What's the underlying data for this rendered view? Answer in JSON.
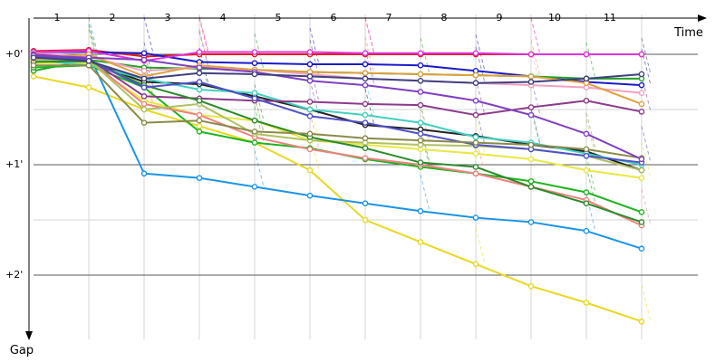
{
  "chart_data": {
    "type": "line",
    "title": "",
    "xlabel": "Time",
    "ylabel": "Gap",
    "x_ticks": [
      "1",
      "2",
      "3",
      "4",
      "5",
      "6",
      "7",
      "8",
      "9",
      "10",
      "11"
    ],
    "y_ticks": [
      "+0'",
      "+1'",
      "+2'"
    ],
    "xlim": [
      0,
      12
    ],
    "ylim_minutes": [
      -0.25,
      2.55
    ],
    "y_inverted": true,
    "grid": true,
    "legend": "none",
    "series": [
      {
        "color": "#e81b1b",
        "values": [
          -0.03,
          -0.04,
          0.02,
          0.0,
          0.0,
          0.0,
          0.0,
          0.0,
          0.0,
          0.0,
          0.0,
          0.0
        ]
      },
      {
        "color": "#1a1acb",
        "values": [
          -0.02,
          -0.02,
          -0.01,
          0.07,
          0.08,
          0.09,
          0.09,
          0.1,
          0.15,
          0.2,
          0.25,
          0.28
        ]
      },
      {
        "color": "#22a322",
        "values": [
          0.15,
          0.05,
          0.12,
          0.13,
          0.14,
          0.16,
          0.17,
          0.18,
          0.19,
          0.2,
          0.22,
          0.22
        ]
      },
      {
        "color": "#dd33dd",
        "values": [
          -0.02,
          -0.03,
          0.06,
          -0.02,
          -0.02,
          -0.02,
          -0.01,
          -0.01,
          -0.01,
          0.0,
          0.0,
          0.0
        ]
      },
      {
        "color": "#e8d820",
        "values": [
          0.2,
          0.3,
          0.5,
          0.65,
          0.8,
          1.05,
          1.5,
          1.7,
          1.9,
          2.1,
          2.25,
          2.42
        ]
      },
      {
        "color": "#1a94e6",
        "values": [
          0.08,
          0.0,
          1.08,
          1.12,
          1.2,
          1.28,
          1.35,
          1.42,
          1.48,
          1.52,
          1.6,
          1.76
        ]
      },
      {
        "color": "#222222",
        "values": [
          0.05,
          0.07,
          0.25,
          0.27,
          0.38,
          0.5,
          0.64,
          0.68,
          0.74,
          0.82,
          0.88,
          1.05
        ]
      },
      {
        "color": "#e8e840",
        "values": [
          0.08,
          0.08,
          0.42,
          0.55,
          0.6,
          0.78,
          0.82,
          0.86,
          0.9,
          0.95,
          1.05,
          1.12
        ]
      },
      {
        "color": "#1eb41e",
        "values": [
          0.12,
          0.1,
          0.3,
          0.7,
          0.8,
          0.85,
          0.95,
          1.02,
          1.08,
          1.15,
          1.25,
          1.43
        ]
      },
      {
        "color": "#40d0c0",
        "values": [
          0.05,
          0.1,
          0.22,
          0.32,
          0.35,
          0.5,
          0.55,
          0.62,
          0.75,
          0.8,
          0.9,
          1.0
        ]
      },
      {
        "color": "#f08080",
        "values": [
          0.02,
          0.05,
          0.45,
          0.55,
          0.75,
          0.86,
          0.94,
          1.0,
          1.08,
          1.2,
          1.32,
          1.55
        ]
      },
      {
        "color": "#b0c060",
        "values": [
          0.05,
          0.05,
          0.5,
          0.45,
          0.72,
          0.78,
          0.8,
          0.82,
          0.83,
          0.86,
          0.92,
          1.05
        ]
      },
      {
        "color": "#f0a0c0",
        "values": [
          -0.01,
          0.02,
          0.15,
          0.12,
          0.14,
          0.18,
          0.22,
          0.24,
          0.26,
          0.28,
          0.3,
          0.35
        ]
      },
      {
        "color": "#8b3a8b",
        "values": [
          0.0,
          0.04,
          0.38,
          0.4,
          0.42,
          0.43,
          0.45,
          0.46,
          0.55,
          0.48,
          0.42,
          0.52
        ]
      },
      {
        "color": "#2a8a2a",
        "values": [
          0.07,
          0.06,
          0.28,
          0.42,
          0.6,
          0.75,
          0.85,
          0.98,
          1.02,
          1.2,
          1.35,
          1.52
        ]
      },
      {
        "color": "#e0a040",
        "values": [
          0.04,
          0.0,
          0.2,
          0.1,
          0.14,
          0.16,
          0.17,
          0.18,
          0.19,
          0.2,
          0.26,
          0.45
        ]
      },
      {
        "color": "#5050c8",
        "values": [
          0.02,
          0.05,
          0.3,
          0.25,
          0.4,
          0.56,
          0.62,
          0.72,
          0.82,
          0.86,
          0.92,
          0.98
        ]
      },
      {
        "color": "#8a8a4a",
        "values": [
          0.1,
          0.1,
          0.62,
          0.6,
          0.7,
          0.72,
          0.76,
          0.78,
          0.8,
          0.82,
          0.86,
          0.94
        ]
      },
      {
        "color": "#8040c0",
        "values": [
          0.01,
          0.03,
          0.05,
          0.12,
          0.16,
          0.24,
          0.28,
          0.34,
          0.42,
          0.55,
          0.72,
          0.95
        ]
      },
      {
        "color": "#404080",
        "values": [
          0.03,
          0.06,
          0.22,
          0.17,
          0.18,
          0.2,
          0.22,
          0.24,
          0.26,
          0.25,
          0.22,
          0.18
        ]
      }
    ]
  }
}
